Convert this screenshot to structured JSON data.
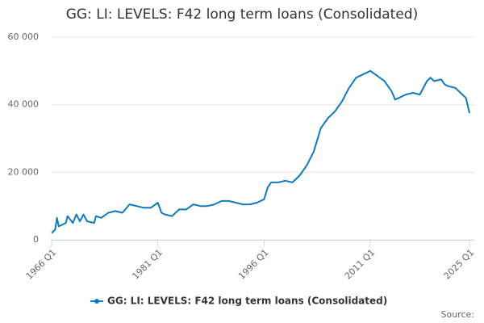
{
  "chart_data": {
    "type": "line",
    "title": "GG: LI: LEVELS: F42 long term loans (Consolidated)",
    "source_label": "Source:",
    "x": [
      1966,
      1966.5,
      1966.75,
      1967,
      1968,
      1968.25,
      1969,
      1969.5,
      1970,
      1970.5,
      1971,
      1972,
      1972.25,
      1973,
      1974,
      1975,
      1976,
      1977,
      1978,
      1979,
      1980,
      1981,
      1981.5,
      1982,
      1983,
      1984,
      1985,
      1986,
      1987,
      1988,
      1989,
      1990,
      1991,
      1992,
      1993,
      1994,
      1995,
      1996,
      1996.5,
      1997,
      1998,
      1999,
      2000,
      2001,
      2002,
      2003,
      2004,
      2005,
      2006,
      2007,
      2008,
      2009,
      2010,
      2011,
      2012,
      2013,
      2014,
      2014.5,
      2015,
      2016,
      2017,
      2018,
      2019,
      2019.5,
      2020,
      2021,
      2021.5,
      2022,
      2023,
      2024,
      2024.5,
      2025
    ],
    "series": [
      {
        "name": "GG: LI: LEVELS: F42 long term loans (Consolidated)",
        "color": "#0f7bbd",
        "values": [
          2000,
          3000,
          6500,
          4000,
          5000,
          7000,
          5000,
          7500,
          5500,
          7500,
          5500,
          5000,
          7000,
          6500,
          8000,
          8500,
          8000,
          10500,
          10000,
          9500,
          9500,
          11000,
          8000,
          7500,
          7000,
          9000,
          9000,
          10500,
          10000,
          10000,
          10500,
          11500,
          11500,
          11000,
          10500,
          10500,
          11000,
          12000,
          15500,
          17000,
          17000,
          17500,
          17000,
          19000,
          22000,
          26000,
          33000,
          36000,
          38000,
          41000,
          45000,
          48000,
          49000,
          50000,
          48500,
          47000,
          44000,
          41500,
          42000,
          43000,
          43500,
          43000,
          47000,
          48000,
          47000,
          47500,
          46000,
          45500,
          45000,
          43000,
          42000,
          37500
        ]
      }
    ],
    "xlim": [
      1966,
      2025
    ],
    "xticks": [
      {
        "value": 1966,
        "label": "1966 Q1"
      },
      {
        "value": 1981,
        "label": "1981 Q1"
      },
      {
        "value": 1996,
        "label": "1996 Q1"
      },
      {
        "value": 2011,
        "label": "2011 Q1"
      },
      {
        "value": 2025,
        "label": "2025 Q1"
      }
    ],
    "ylim": [
      0,
      60000
    ],
    "yticks": [
      0,
      {
        "value": 20000,
        "label": "20 000"
      },
      {
        "value": 40000,
        "label": "40 000"
      },
      {
        "value": 60000,
        "label": "60 000"
      }
    ],
    "grid": true
  }
}
